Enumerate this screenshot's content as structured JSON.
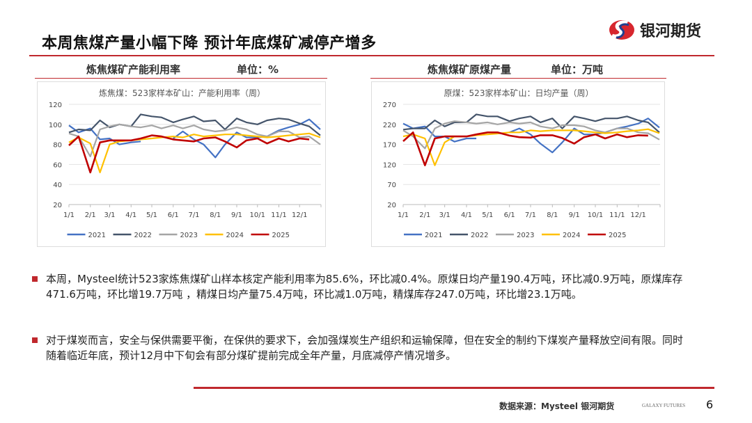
{
  "header": {
    "title": "本周焦煤产量小幅下降 预计年底煤矿减停产增多",
    "logo_text": "银河期货"
  },
  "colors": {
    "accent": "#c0282d",
    "2021": "#4472c4",
    "2022": "#44546a",
    "2023": "#a5a5a5",
    "2024": "#ffc000",
    "2025": "#c00000"
  },
  "charts": [
    {
      "heading": "炼焦煤矿产能利用率",
      "unit": "单位：%"
    },
    {
      "heading": "炼焦煤矿原煤产量",
      "unit": "单位：万吨"
    }
  ],
  "chart_data": [
    {
      "type": "line",
      "title": "炼焦煤：523家样本矿山：产能利用率（周）",
      "ylim": [
        20,
        120
      ],
      "yticks": [
        "20",
        "40",
        "60",
        "80",
        "100",
        "120"
      ],
      "xticks": [
        "1/1",
        "2/1",
        "3/1",
        "4/1",
        "5/1",
        "6/1",
        "7/1",
        "8/1",
        "9/1",
        "10/1",
        "11/1",
        "12/1"
      ],
      "x": [
        "01-01",
        "01-15",
        "02-01",
        "02-15",
        "03-01",
        "03-15",
        "04-01",
        "04-15",
        "05-01",
        "05-15",
        "06-01",
        "06-15",
        "07-01",
        "07-15",
        "08-01",
        "08-15",
        "09-01",
        "09-15",
        "10-01",
        "10-15",
        "11-01",
        "11-15",
        "12-01",
        "12-15",
        "12-31"
      ],
      "legend": "bottom",
      "grid": true,
      "series": [
        {
          "name": "2021",
          "values": [
            99,
            92,
            96,
            85,
            86,
            80,
            82,
            83,
            null,
            null,
            86,
            93,
            85,
            80,
            67,
            80,
            92,
            87,
            87,
            88,
            94,
            97,
            100,
            105,
            95
          ]
        },
        {
          "name": "2022",
          "values": [
            92,
            95,
            94,
            104,
            97,
            100,
            98,
            110,
            108,
            107,
            102,
            105,
            108,
            103,
            104,
            95,
            106,
            102,
            100,
            104,
            106,
            105,
            101,
            98,
            89
          ]
        },
        {
          "name": "2023",
          "values": [
            91,
            88,
            68,
            95,
            98,
            100,
            98,
            97,
            99,
            96,
            99,
            96,
            99,
            95,
            93,
            94,
            97,
            95,
            90,
            88,
            93,
            93,
            87,
            88,
            80
          ]
        },
        {
          "name": "2024",
          "values": [
            82,
            87,
            81,
            52,
            80,
            83,
            84,
            85,
            86,
            87,
            88,
            87,
            90,
            88,
            89,
            90,
            90,
            89,
            88,
            87,
            88,
            89,
            90,
            91,
            87
          ]
        },
        {
          "name": "2025",
          "values": [
            79,
            88,
            52,
            82,
            84,
            84,
            84,
            86,
            89,
            88,
            85,
            84,
            83,
            86,
            87,
            83,
            77,
            84,
            86,
            81,
            86,
            83,
            86,
            85,
            null
          ]
        }
      ]
    },
    {
      "type": "line",
      "title": "原煤：523家样本矿山：日均产量（周）",
      "ylim": [
        20,
        270
      ],
      "yticks": [
        "20",
        "70",
        "120",
        "170",
        "220",
        "270"
      ],
      "xticks": [
        "1/1",
        "2/1",
        "3/1",
        "4/1",
        "5/1",
        "6/1",
        "7/1",
        "8/1",
        "9/1",
        "10/1",
        "11/1",
        "12/1"
      ],
      "x": [
        "01-01",
        "01-15",
        "02-01",
        "02-15",
        "03-01",
        "03-15",
        "04-01",
        "04-15",
        "05-01",
        "05-15",
        "06-01",
        "06-15",
        "07-01",
        "07-15",
        "08-01",
        "08-15",
        "09-01",
        "09-15",
        "10-01",
        "10-15",
        "11-01",
        "11-15",
        "12-01",
        "12-15",
        "12-31"
      ],
      "legend": "bottom",
      "grid": true,
      "series": [
        {
          "name": "2021",
          "values": [
            222,
            210,
            215,
            190,
            190,
            177,
            185,
            185,
            null,
            null,
            200,
            210,
            195,
            172,
            150,
            175,
            210,
            195,
            195,
            200,
            210,
            215,
            222,
            235,
            212
          ]
        },
        {
          "name": "2022",
          "values": [
            207,
            210,
            210,
            230,
            215,
            225,
            225,
            245,
            240,
            240,
            228,
            235,
            240,
            225,
            235,
            210,
            240,
            235,
            228,
            235,
            235,
            240,
            230,
            225,
            200
          ]
        },
        {
          "name": "2023",
          "values": [
            205,
            190,
            160,
            210,
            222,
            228,
            225,
            222,
            225,
            220,
            225,
            222,
            225,
            215,
            210,
            218,
            218,
            215,
            205,
            200,
            210,
            210,
            200,
            198,
            182
          ]
        },
        {
          "name": "2024",
          "values": [
            190,
            195,
            185,
            118,
            175,
            190,
            190,
            193,
            195,
            197,
            200,
            200,
            205,
            203,
            205,
            205,
            205,
            203,
            200,
            198,
            200,
            203,
            205,
            208,
            198
          ]
        },
        {
          "name": "2025",
          "values": [
            178,
            200,
            118,
            185,
            190,
            190,
            190,
            195,
            200,
            200,
            192,
            188,
            187,
            193,
            193,
            186,
            172,
            188,
            195,
            185,
            195,
            188,
            193,
            192,
            null
          ]
        }
      ]
    }
  ],
  "bullets": [
    "本周，Mysteel统计523家炼焦煤矿山样本核定产能利用率为85.6%，环比减0.4%。原煤日均产量190.4万吨，环比减0.9万吨，原煤库存471.6万吨，环比增19.7万吨 ，精煤日均产量75.4万吨，环比减1.0万吨，精煤库存247.0万吨，环比增23.1万吨。",
    "对于煤炭而言，安全与保供需要平衡，在保供的要求下，会加强煤炭生产组织和运输保障，但在安全的制约下煤炭产量释放空间有限。同时随着临近年底，预计12月中下旬会有部分煤矿提前完成全年产量，月底减停产情况增多。"
  ],
  "footer": {
    "source": "数据来源：Mysteel 银河期货",
    "brand": "GALAXY FUTURES",
    "page": "6"
  }
}
